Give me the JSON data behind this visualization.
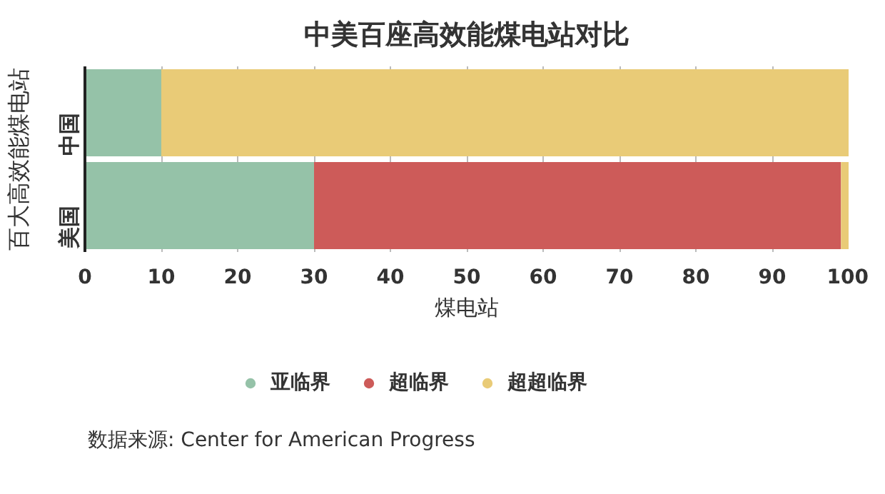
{
  "chart_data": {
    "type": "bar",
    "orientation": "horizontal",
    "stacked": true,
    "title": "中美百座高效能煤电站对比",
    "xlabel": "煤电站",
    "ylabel": "百大高效能煤电站",
    "categories": [
      "中国",
      "美国"
    ],
    "series": [
      {
        "name": "亚临界",
        "color": "#95c2a8",
        "values": [
          10,
          30
        ]
      },
      {
        "name": "超临界",
        "color": "#cd5b59",
        "values": [
          0,
          69
        ]
      },
      {
        "name": "超超临界",
        "color": "#e9cb77",
        "values": [
          90,
          1
        ]
      }
    ],
    "xlim": [
      0,
      100
    ],
    "xticks": [
      0,
      10,
      20,
      30,
      40,
      50,
      60,
      70,
      80,
      90,
      100
    ],
    "grid": "x",
    "legend": "bottom",
    "annotations": [
      "数据来源: Center for American Progress"
    ]
  }
}
